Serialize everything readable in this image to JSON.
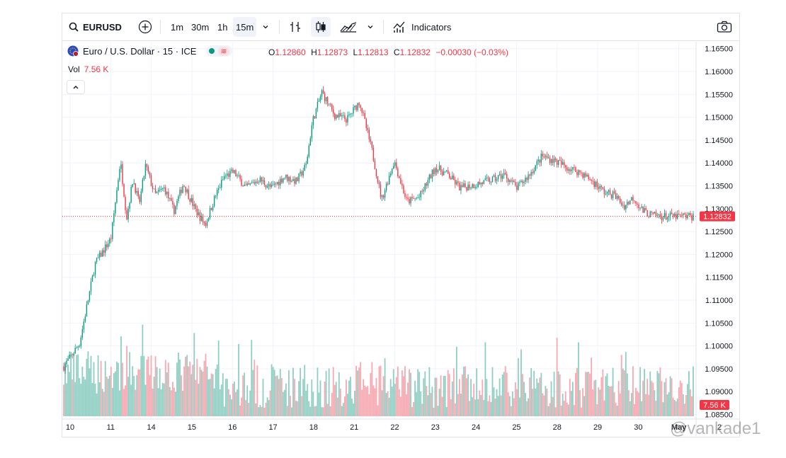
{
  "toolbar": {
    "symbol": "EURUSD",
    "timeframes": [
      "1m",
      "30m",
      "1h",
      "15m"
    ],
    "active_timeframe": "15m",
    "indicators_label": "Indicators"
  },
  "legend": {
    "title": "Euro / U.S. Dollar · 15 · ICE",
    "open_label": "O",
    "open": "1.12860",
    "high_label": "H",
    "high": "1.12873",
    "low_label": "L",
    "low": "1.12813",
    "close_label": "C",
    "close": "1.12832",
    "change": "−0.00030 (−0.03%)"
  },
  "volume": {
    "label": "Vol",
    "value": "7.56 K"
  },
  "watermark": "@vankade1",
  "colors": {
    "up": "#089981",
    "down": "#f23645",
    "up_vol": "#8fcfc3",
    "down_vol": "#f7a8b0",
    "grid": "#f0f3fa"
  },
  "chart_data": {
    "type": "candlestick",
    "symbol": "EURUSD",
    "timeframe": "15m",
    "y_ticks": [
      "1.16500",
      "1.16000",
      "1.15500",
      "1.15000",
      "1.14500",
      "1.14000",
      "1.13500",
      "1.13000",
      "1.12500",
      "1.12000",
      "1.11500",
      "1.11000",
      "1.10500",
      "1.10000",
      "1.09500",
      "1.09000",
      "1.08500"
    ],
    "ylim": [
      1.084,
      1.1665
    ],
    "last_price": 1.12832,
    "last_price_label": "1.12832",
    "volume_label": "7.56 K",
    "x_ticks": [
      "10",
      "11",
      "14",
      "15",
      "16",
      "17",
      "18",
      "21",
      "22",
      "23",
      "24",
      "25",
      "28",
      "29",
      "30",
      "May",
      "2"
    ],
    "price_path": [
      [
        0,
        1.0955
      ],
      [
        0.025,
        1.1005
      ],
      [
        0.05,
        1.118
      ],
      [
        0.075,
        1.1235
      ],
      [
        0.09,
        1.1405
      ],
      [
        0.1,
        1.128
      ],
      [
        0.11,
        1.1365
      ],
      [
        0.12,
        1.131
      ],
      [
        0.13,
        1.1395
      ],
      [
        0.145,
        1.133
      ],
      [
        0.16,
        1.1345
      ],
      [
        0.175,
        1.1295
      ],
      [
        0.19,
        1.1355
      ],
      [
        0.21,
        1.1295
      ],
      [
        0.225,
        1.1265
      ],
      [
        0.24,
        1.1325
      ],
      [
        0.255,
        1.137
      ],
      [
        0.27,
        1.138
      ],
      [
        0.29,
        1.1345
      ],
      [
        0.31,
        1.1365
      ],
      [
        0.33,
        1.1345
      ],
      [
        0.35,
        1.137
      ],
      [
        0.37,
        1.136
      ],
      [
        0.385,
        1.1395
      ],
      [
        0.395,
        1.149
      ],
      [
        0.41,
        1.1555
      ],
      [
        0.43,
        1.1505
      ],
      [
        0.45,
        1.1495
      ],
      [
        0.47,
        1.1535
      ],
      [
        0.49,
        1.1425
      ],
      [
        0.505,
        1.132
      ],
      [
        0.525,
        1.1405
      ],
      [
        0.545,
        1.1315
      ],
      [
        0.565,
        1.1325
      ],
      [
        0.59,
        1.139
      ],
      [
        0.61,
        1.1375
      ],
      [
        0.63,
        1.1345
      ],
      [
        0.66,
        1.1355
      ],
      [
        0.685,
        1.1365
      ],
      [
        0.7,
        1.1375
      ],
      [
        0.72,
        1.1345
      ],
      [
        0.74,
        1.1375
      ],
      [
        0.76,
        1.1415
      ],
      [
        0.78,
        1.1405
      ],
      [
        0.8,
        1.139
      ],
      [
        0.82,
        1.138
      ],
      [
        0.84,
        1.136
      ],
      [
        0.86,
        1.1335
      ],
      [
        0.875,
        1.133
      ],
      [
        0.89,
        1.1305
      ],
      [
        0.905,
        1.1325
      ],
      [
        0.92,
        1.1295
      ],
      [
        0.935,
        1.1285
      ],
      [
        0.955,
        1.1283
      ]
    ]
  }
}
